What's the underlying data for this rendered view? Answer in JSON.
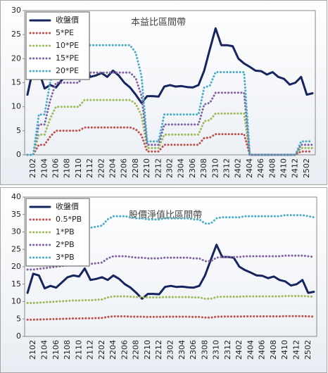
{
  "chart_data": [
    {
      "type": "line",
      "title": "本益比區間帶",
      "categories": [
        null,
        "2102",
        null,
        "2104",
        null,
        "2106",
        null,
        "2108",
        null,
        "2110",
        null,
        "2112",
        null,
        "2202",
        null,
        "2204",
        null,
        "2206",
        null,
        "2208",
        null,
        "2210",
        null,
        "2212",
        null,
        "2302",
        null,
        "2304",
        null,
        "2306",
        null,
        "2308",
        null,
        "2310",
        null,
        "2312",
        null,
        "2402",
        null,
        "2404",
        null,
        "2406",
        null,
        "2408",
        null,
        "2410",
        null,
        "2412",
        null,
        "2502",
        null
      ],
      "series": [
        {
          "name": "收盤價",
          "color": "#17255f",
          "style": "solid",
          "values": [
            12.5,
            18,
            17.5,
            13.8,
            14.5,
            14,
            15.5,
            17,
            17.5,
            17.2,
            19.5,
            16.2,
            16.5,
            17,
            16.2,
            17.5,
            16.5,
            15,
            14,
            12.5,
            10.8,
            12.2,
            12.2,
            12.1,
            14.2,
            14.5,
            14.2,
            14.3,
            14.1,
            14,
            14.5,
            17.5,
            22,
            26.3,
            22.8,
            22.8,
            22.6,
            20,
            19,
            18.3,
            17.5,
            17.4,
            16.7,
            17.2,
            16.2,
            15.8,
            14.6,
            15,
            16.2,
            12.5,
            12.8
          ]
        },
        {
          "name": "5*PE",
          "color": "#c0504d",
          "style": "dotted",
          "values": [
            0,
            0,
            2.1,
            2.1,
            3.8,
            5,
            5,
            5,
            5,
            5,
            5.7,
            5.7,
            5.7,
            5.7,
            5.7,
            5.7,
            5.7,
            5.7,
            5.7,
            5.3,
            4.1,
            0.7,
            0.7,
            0.7,
            2.1,
            2.1,
            2.1,
            2.1,
            2.1,
            2.1,
            2.1,
            3.5,
            3.6,
            4.3,
            4.3,
            4.3,
            4.3,
            4.3,
            4.3,
            0,
            0,
            0,
            0,
            0,
            0,
            0,
            0,
            0,
            0.7,
            0.7,
            0.7
          ]
        },
        {
          "name": "10*PE",
          "color": "#9bbb59",
          "style": "dotted",
          "values": [
            0,
            0,
            4.2,
            4.2,
            7.6,
            10,
            10,
            10,
            10,
            10,
            11.4,
            11.4,
            11.4,
            11.4,
            11.4,
            11.4,
            11.4,
            11.4,
            11.4,
            10.6,
            8.2,
            1.4,
            1.4,
            1.4,
            4.2,
            4.2,
            4.2,
            4.2,
            4.2,
            4.2,
            4.2,
            7,
            7.2,
            8.6,
            8.6,
            8.6,
            8.6,
            8.6,
            8.6,
            0,
            0,
            0,
            0,
            0,
            0,
            0,
            0,
            0,
            1.4,
            1.4,
            1.4
          ]
        },
        {
          "name": "15*PE",
          "color": "#8064a2",
          "style": "dotted",
          "values": [
            0,
            0,
            6.3,
            6.3,
            11.4,
            15,
            15,
            15,
            15,
            15,
            17.1,
            17.1,
            17.1,
            17.1,
            17.1,
            17.1,
            17.1,
            17.1,
            17.1,
            15.9,
            12.3,
            2.1,
            2.1,
            2.1,
            6.3,
            6.3,
            6.3,
            6.3,
            6.3,
            6.3,
            6.3,
            10.5,
            10.8,
            12.9,
            12.9,
            12.9,
            12.9,
            12.9,
            12.9,
            0,
            0,
            0,
            0,
            0,
            0,
            0,
            0,
            0,
            2.1,
            2.1,
            2.1
          ]
        },
        {
          "name": "20*PE",
          "color": "#4bacc6",
          "style": "dotted",
          "values": [
            0,
            0,
            8.4,
            8.4,
            15.2,
            20,
            20,
            20,
            20,
            20,
            22.8,
            22.8,
            22.8,
            22.8,
            22.8,
            22.8,
            22.8,
            22.8,
            22.8,
            21.2,
            16.4,
            2.8,
            2.8,
            2.8,
            8.4,
            8.4,
            8.4,
            8.4,
            8.4,
            8.4,
            8.4,
            14,
            14.4,
            17.2,
            17.2,
            17.2,
            17.2,
            17.2,
            17.2,
            0,
            0,
            0,
            0,
            0,
            0,
            0,
            0,
            0,
            2.8,
            2.8,
            2.8
          ]
        }
      ],
      "ylim": [
        0,
        30
      ],
      "yticks": [
        0,
        5,
        10,
        15,
        20,
        25,
        30
      ],
      "grid": false,
      "legend": "upper left"
    },
    {
      "type": "line",
      "title": "股價淨值比區間帶",
      "categories": [
        null,
        "2102",
        null,
        "2104",
        null,
        "2106",
        null,
        "2108",
        null,
        "2110",
        null,
        "2112",
        null,
        "2202",
        null,
        "2204",
        null,
        "2206",
        null,
        "2208",
        null,
        "2210",
        null,
        "2212",
        null,
        "2302",
        null,
        "2304",
        null,
        "2306",
        null,
        "2308",
        null,
        "2310",
        null,
        "2312",
        null,
        "2402",
        null,
        "2404",
        null,
        "2406",
        null,
        "2408",
        null,
        "2410",
        null,
        "2412",
        null,
        "2502",
        null
      ],
      "series": [
        {
          "name": "收盤價",
          "color": "#17255f",
          "style": "solid",
          "values": [
            12.5,
            18,
            17.5,
            13.8,
            14.5,
            14,
            15.5,
            17,
            17.5,
            17.2,
            19.5,
            16.2,
            16.5,
            17,
            16.2,
            17.5,
            16.5,
            15,
            14,
            12.5,
            10.8,
            12.2,
            12.2,
            12.1,
            14.2,
            14.5,
            14.2,
            14.3,
            14.1,
            14,
            14.5,
            17.5,
            22,
            26.3,
            22.8,
            22.8,
            22.6,
            20,
            19,
            18.3,
            17.5,
            17.4,
            16.7,
            17.2,
            16.2,
            15.8,
            14.6,
            15,
            16.2,
            12.5,
            12.8
          ]
        },
        {
          "name": "0.5*PB",
          "color": "#c0504d",
          "style": "dotted",
          "values": [
            4.8,
            4.8,
            4.85,
            4.9,
            4.95,
            5,
            5.05,
            5.1,
            5.15,
            5.15,
            5.2,
            5.2,
            5.25,
            5.3,
            5.6,
            5.75,
            5.75,
            5.75,
            5.7,
            5.65,
            5.65,
            5.6,
            5.6,
            5.6,
            5.65,
            5.65,
            5.65,
            5.65,
            5.65,
            5.6,
            5.6,
            5.4,
            5.4,
            5.65,
            5.7,
            5.7,
            5.7,
            5.7,
            5.75,
            5.75,
            5.75,
            5.75,
            5.75,
            5.75,
            5.75,
            5.8,
            5.8,
            5.8,
            5.8,
            5.75,
            5.7
          ]
        },
        {
          "name": "1*PB",
          "color": "#9bbb59",
          "style": "dotted",
          "values": [
            9.6,
            9.6,
            9.7,
            9.8,
            9.9,
            10,
            10.1,
            10.2,
            10.3,
            10.3,
            10.4,
            10.4,
            10.5,
            10.6,
            11.2,
            11.5,
            11.5,
            11.5,
            11.4,
            11.3,
            11.3,
            11.2,
            11.2,
            11.2,
            11.3,
            11.3,
            11.3,
            11.3,
            11.3,
            11.2,
            11.2,
            10.8,
            10.8,
            11.3,
            11.4,
            11.4,
            11.4,
            11.4,
            11.5,
            11.5,
            11.5,
            11.5,
            11.5,
            11.5,
            11.5,
            11.6,
            11.6,
            11.6,
            11.6,
            11.5,
            11.4
          ]
        },
        {
          "name": "2*PB",
          "color": "#8064a2",
          "style": "dotted",
          "values": [
            19.2,
            19.2,
            19.4,
            19.6,
            19.8,
            20,
            20.2,
            20.4,
            20.6,
            20.6,
            20.8,
            20.8,
            21,
            21.2,
            22.4,
            23,
            23,
            23,
            22.8,
            22.6,
            22.6,
            22.4,
            22.4,
            22.4,
            22.6,
            22.6,
            22.6,
            22.6,
            22.6,
            22.4,
            22.4,
            21.6,
            21.6,
            22.6,
            22.8,
            22.8,
            22.8,
            22.8,
            23,
            23,
            23,
            23,
            23,
            23,
            23,
            23.2,
            23.2,
            23.2,
            23.2,
            23,
            22.8
          ]
        },
        {
          "name": "3*PB",
          "color": "#4bacc6",
          "style": "dotted",
          "values": [
            28.8,
            28.8,
            29.1,
            29.4,
            29.7,
            30,
            30.3,
            30.6,
            30.9,
            30.9,
            31.2,
            31.2,
            31.5,
            31.8,
            33.6,
            34.5,
            34.5,
            34.5,
            34.2,
            33.9,
            33.9,
            33.6,
            33.6,
            33.6,
            33.9,
            33.9,
            33.9,
            33.9,
            33.9,
            33.6,
            33.6,
            32.4,
            32.4,
            33.9,
            34.2,
            34.2,
            34.2,
            34.2,
            34.5,
            34.5,
            34.5,
            34.5,
            34.5,
            34.5,
            34.5,
            34.8,
            34.8,
            34.8,
            34.8,
            34.5,
            34.2
          ]
        }
      ],
      "ylim": [
        0,
        40
      ],
      "yticks": [
        0,
        5,
        10,
        15,
        20,
        25,
        30,
        35,
        40
      ],
      "grid": false,
      "legend": "upper left"
    }
  ]
}
